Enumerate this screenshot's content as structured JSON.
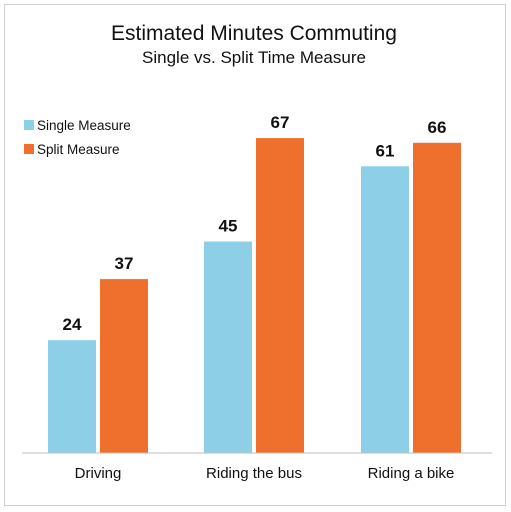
{
  "chart_data": {
    "type": "bar",
    "title": "Estimated Minutes Commuting",
    "subtitle": "Single vs. Split Time Measure",
    "categories": [
      "Driving",
      "Riding the bus",
      "Riding a bike"
    ],
    "series": [
      {
        "name": "Single Measure",
        "values": [
          24,
          45,
          61
        ],
        "color": "#8dcfe6"
      },
      {
        "name": "Split Measure",
        "values": [
          37,
          67,
          66
        ],
        "color": "#ef6f2c"
      }
    ],
    "xlabel": "",
    "ylabel": "",
    "ylim": [
      0,
      70
    ],
    "grid": false,
    "legend_position": "top-left",
    "data_labels": true
  }
}
